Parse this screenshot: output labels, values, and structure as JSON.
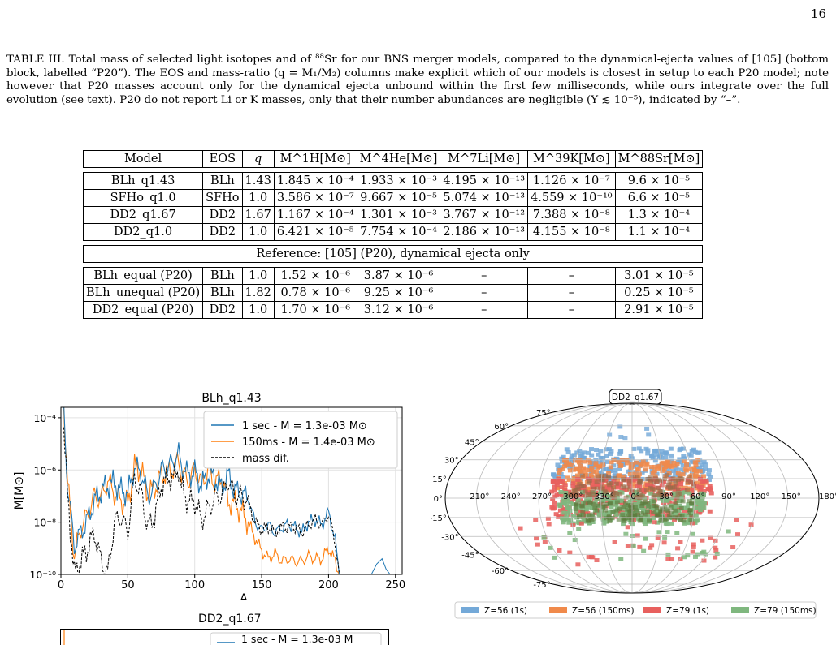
{
  "page_number": "16",
  "caption": {
    "p1": "TABLE III. Total mass of selected light isotopes and of ",
    "sup1": "88",
    "p2": "Sr for our BNS merger models, compared to the dynamical-ejecta values of [105] (bottom block, labelled “P20”). The EOS and mass-ratio (q = M₁/M₂) columns make explicit which of our models is closest in setup to each P20 model; note however that P20 masses account only for the dynamical ejecta unbound within the first few milliseconds, while ours integrate over the full evolution (see text). P20 do not report Li or K masses, only that their number abundances are negligible (Y ≲ 10⁻⁵), indicated by “–”."
  },
  "table": {
    "headers": [
      "Model",
      "EOS",
      "q",
      "M^1H[M⊙]",
      "M^4He[M⊙]",
      "M^7Li[M⊙]",
      "M^39K[M⊙]",
      "M^88Sr[M⊙]"
    ],
    "rows": [
      [
        "BLh_q1.43",
        "BLh",
        "1.43",
        "1.845 × 10⁻⁴",
        "1.933 × 10⁻³",
        "4.195 × 10⁻¹³",
        "1.126 × 10⁻⁷",
        "9.6 × 10⁻⁵"
      ],
      [
        "SFHo_q1.0",
        "SFHo",
        "1.0",
        "3.586 × 10⁻⁷",
        "9.667 × 10⁻⁵",
        "5.074 × 10⁻¹³",
        "4.559 × 10⁻¹⁰",
        "6.6 × 10⁻⁵"
      ],
      [
        "DD2_q1.67",
        "DD2",
        "1.67",
        "1.167 × 10⁻⁴",
        "1.301 × 10⁻³",
        "3.767 × 10⁻¹²",
        "7.388 × 10⁻⁸",
        "1.3 × 10⁻⁴"
      ],
      [
        "DD2_q1.0",
        "DD2",
        "1.0",
        "6.421 × 10⁻⁵",
        "7.754 × 10⁻⁴",
        "2.186 × 10⁻¹³",
        "4.155 × 10⁻⁸",
        "1.1 × 10⁻⁴"
      ]
    ],
    "reference_label": "Reference: [105] (P20), dynamical ejecta only",
    "ref_rows": [
      [
        "BLh_equal (P20)",
        "BLh",
        "1.0",
        "1.52 × 10⁻⁶",
        "3.87 × 10⁻⁶",
        "–",
        "–",
        "3.01 × 10⁻⁵"
      ],
      [
        "BLh_unequal (P20)",
        "BLh",
        "1.82",
        "0.78 × 10⁻⁶",
        "9.25 × 10⁻⁶",
        "–",
        "–",
        "0.25 × 10⁻⁵"
      ],
      [
        "DD2_equal (P20)",
        "DD2",
        "1.0",
        "1.70 × 10⁻⁶",
        "3.12 × 10⁻⁶",
        "–",
        "–",
        "2.91 × 10⁻⁵"
      ]
    ]
  },
  "chart_data": [
    {
      "type": "line",
      "title": "BLh_q1.43",
      "xlabel": "A",
      "ylabel": "M[M⊙]",
      "xlim": [
        0,
        255
      ],
      "ylim_log10": [
        -10,
        -3.6
      ],
      "xticks": [
        "0",
        "50",
        "100",
        "150",
        "200",
        "250"
      ],
      "yticks": [
        "10⁻¹⁰",
        "10⁻⁸",
        "10⁻⁶",
        "10⁻⁴"
      ],
      "legend_position": "top-right",
      "grid": true,
      "series": [
        {
          "name": "1 sec - M = 1.3e-03 M⊙",
          "color": "#1f77b4",
          "x": [
            2,
            5,
            10,
            15,
            20,
            25,
            30,
            35,
            40,
            45,
            50,
            55,
            60,
            65,
            70,
            75,
            80,
            85,
            88,
            90,
            95,
            100,
            105,
            110,
            115,
            120,
            125,
            130,
            135,
            140,
            145,
            150,
            155,
            160,
            165,
            170,
            175,
            180,
            185,
            190,
            195,
            200,
            205,
            208
          ],
          "log10_y": [
            -3.6,
            -6.6,
            -8.9,
            -8.4,
            -7.9,
            -7.2,
            -6.8,
            -6.6,
            -6.5,
            -6.8,
            -6.9,
            -5.9,
            -6.1,
            -7.0,
            -6.7,
            -6.0,
            -5.9,
            -5.6,
            -5.4,
            -5.8,
            -6.2,
            -6.1,
            -6.6,
            -6.2,
            -6.3,
            -6.7,
            -6.2,
            -6.8,
            -6.9,
            -7.1,
            -8.0,
            -8.3,
            -8.1,
            -8.4,
            -8.2,
            -8.1,
            -8.2,
            -8.4,
            -8.0,
            -7.9,
            -8.1,
            -7.6,
            -8.7,
            -10
          ]
        },
        {
          "name": "150ms - M = 1.4e-03 M⊙",
          "color": "#ff7f0e",
          "x": [
            2,
            5,
            10,
            15,
            20,
            25,
            30,
            35,
            40,
            45,
            50,
            55,
            60,
            65,
            70,
            75,
            80,
            85,
            88,
            90,
            95,
            100,
            105,
            110,
            115,
            120,
            125,
            130,
            135,
            140,
            145,
            150,
            155,
            160,
            165,
            170,
            175,
            180,
            185,
            190,
            195,
            200,
            205,
            208
          ],
          "log10_y": [
            -3.4,
            -6.5,
            -9.3,
            -8.2,
            -7.7,
            -7.0,
            -7.1,
            -6.4,
            -6.9,
            -7.2,
            -7.3,
            -5.9,
            -6.0,
            -6.9,
            -6.7,
            -6.2,
            -6.1,
            -5.9,
            -5.6,
            -6.1,
            -6.4,
            -6.0,
            -6.5,
            -6.0,
            -6.5,
            -6.3,
            -7.2,
            -7.3,
            -7.6,
            -8.0,
            -8.6,
            -9.1,
            -9.4,
            -9.2,
            -9.5,
            -9.4,
            -9.5,
            -9.5,
            -9.3,
            -9.4,
            -9.4,
            -9.0,
            -9.5,
            -10
          ]
        },
        {
          "name": "mass dif.",
          "color": "#000000",
          "x": [
            2,
            5,
            10,
            15,
            20,
            25,
            30,
            35,
            40,
            45,
            50,
            55,
            60,
            65,
            70,
            75,
            80,
            85,
            88,
            90,
            95,
            100,
            105,
            110,
            115,
            120,
            125,
            130,
            135,
            140,
            145,
            150,
            155,
            160,
            165,
            170,
            175,
            180,
            185,
            190,
            195,
            200,
            205,
            208
          ],
          "log10_y": [
            -4.3,
            -7.0,
            -10,
            -9.5,
            -9.0,
            -8.4,
            -9.5,
            -10,
            -8.0,
            -7.8,
            -8.4,
            -6.3,
            -6.9,
            -8.2,
            -7.8,
            -6.6,
            -6.3,
            -6.3,
            -5.9,
            -6.7,
            -7.2,
            -7.2,
            -7.9,
            -7.5,
            -7.1,
            -7.0,
            -6.4,
            -7.0,
            -7.0,
            -7.2,
            -8.0,
            -8.3,
            -8.2,
            -8.4,
            -8.2,
            -8.2,
            -8.2,
            -8.4,
            -8.1,
            -7.9,
            -8.1,
            -7.7,
            -8.8,
            -10
          ]
        }
      ]
    },
    {
      "type": "heatmap",
      "title": "DD2_q1.67",
      "projection": "mollweide",
      "lon_labels": [
        "210°",
        "240°",
        "270°",
        "300°",
        "330°",
        "0°",
        "30°",
        "60°",
        "90°",
        "120°",
        "150°",
        "180°"
      ],
      "lat_labels": [
        "75°",
        "60°",
        "45°",
        "30°",
        "15°",
        "0°",
        "-15°",
        "-30°",
        "-45°",
        "-60°",
        "-75°"
      ],
      "legend_position": "bottom",
      "series": [
        {
          "name": "Z=56 (1s)",
          "color": "#74a9d8"
        },
        {
          "name": "Z=56 (150ms)",
          "color": "#f08a4b"
        },
        {
          "name": "Z=79 (1s)",
          "color": "#e8605e"
        },
        {
          "name": "Z=79 (150ms)",
          "color": "#7fb77e"
        }
      ]
    }
  ],
  "partial_chart": {
    "title": "DD2_q1.67",
    "legend_first": "1 sec - M = 1.3e-03 M"
  }
}
